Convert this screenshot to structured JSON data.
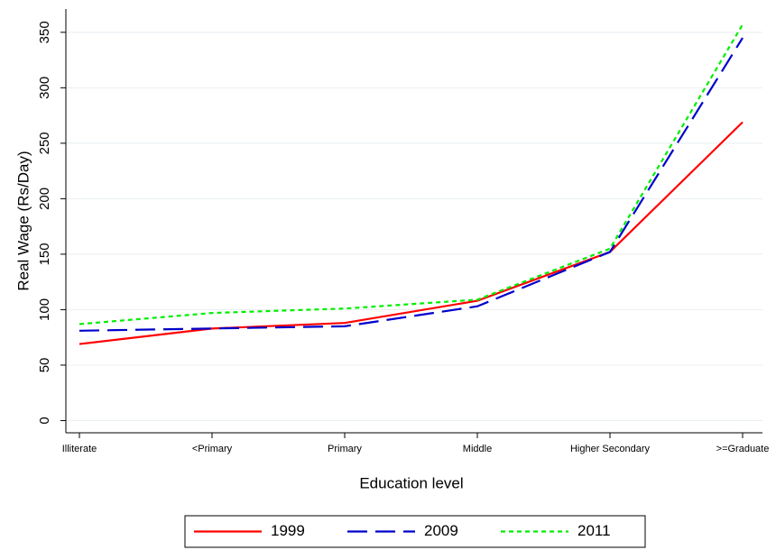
{
  "chart_data": {
    "type": "line",
    "categories": [
      "Illiterate",
      "<Primary",
      "Primary",
      "Middle",
      "Higher Secondary",
      ">=Graduate"
    ],
    "series": [
      {
        "name": "1999",
        "color": "#ff0000",
        "dash": "solid",
        "values": [
          69,
          83,
          88,
          108,
          152,
          269
        ]
      },
      {
        "name": "2009",
        "color": "#0000cc",
        "dash": "dashed",
        "values": [
          81,
          83,
          85,
          103,
          152,
          345
        ]
      },
      {
        "name": "2011",
        "color": "#00ee00",
        "dash": "dotted",
        "values": [
          87,
          97,
          101,
          109,
          155,
          357
        ]
      }
    ],
    "ylim": [
      -11,
      371
    ],
    "yticks": [
      0,
      50,
      100,
      150,
      200,
      250,
      300,
      350
    ],
    "grid": true,
    "y_label": "Real Wage (Rs/Day)",
    "x_label": "Education level",
    "legend": "bottom"
  }
}
